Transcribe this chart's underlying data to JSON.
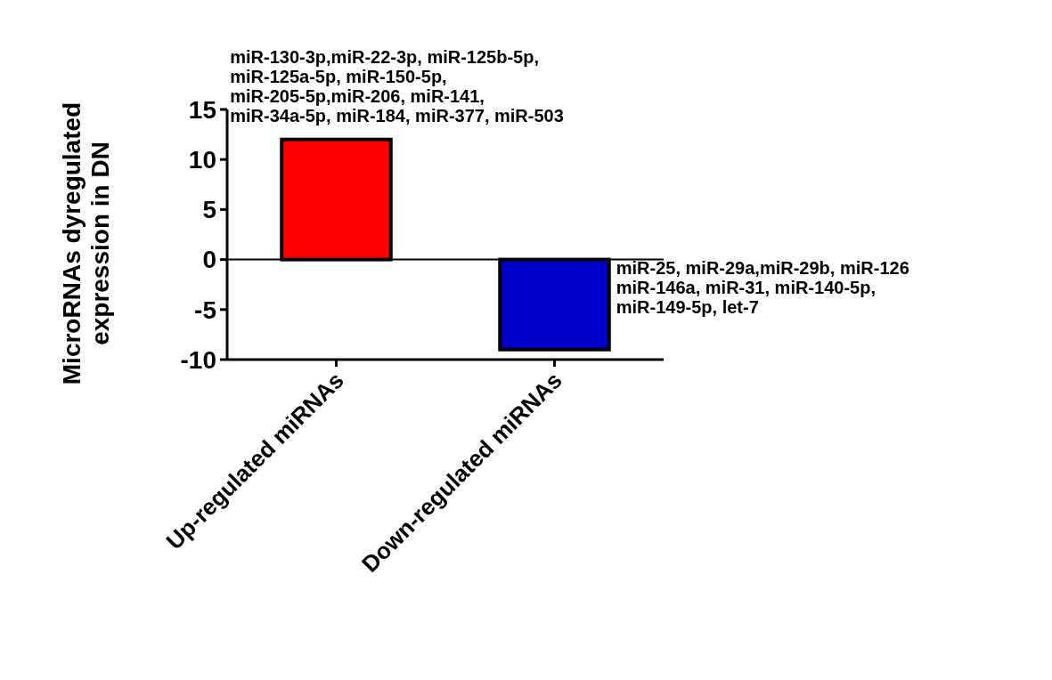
{
  "chart_data": {
    "type": "bar",
    "ylabel": "MicroRNAs dyregulated\nexpression in DN",
    "categories": [
      "Up-regulated miRNAs",
      "Down-regulated miRNAs"
    ],
    "values": [
      12,
      -9
    ],
    "colors": [
      "#ff0000",
      "#0000cc"
    ],
    "ylim": [
      -10,
      15
    ],
    "yticks": [
      -10,
      -5,
      0,
      5,
      10,
      15
    ],
    "annotations": [
      "miR-130-3p,miR-22-3p, miR-125b-5p,\nmiR-125a-5p, miR-150-5p,\nmiR-205-5p,miR-206, miR-141,\nmiR-34a-5p, miR-184, miR-377, miR-503",
      "miR-25, miR-29a,miR-29b, miR-126\nmiR-146a, miR-31, miR-140-5p,\nmiR-149-5p, let-7"
    ]
  }
}
